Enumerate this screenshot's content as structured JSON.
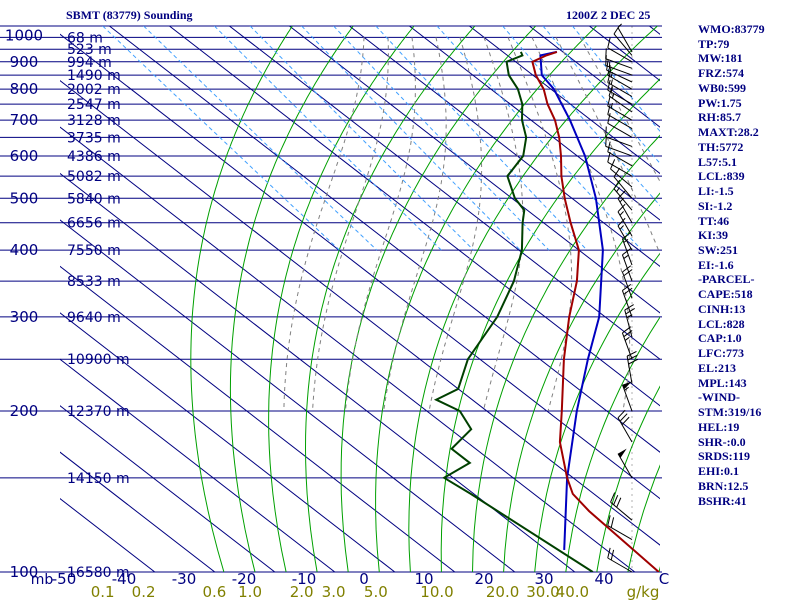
{
  "header": {
    "station": "SBMT (83779) Sounding",
    "datetime": "1200Z  2 DEC 25"
  },
  "indices": [
    "WMO:83779",
    "TP:79",
    "MW:181",
    "FRZ:574",
    "WB0:599",
    "PW:1.75",
    "RH:85.7",
    "MAXT:28.2",
    "TH:5772",
    "L57:5.1",
    "LCL:839",
    "LI:-1.5",
    "SI:-1.2",
    "TT:46",
    "KI:39",
    "SW:251",
    "EI:-1.6",
    "-PARCEL-",
    "CAPE:518",
    "CINH:13",
    "LCL:828",
    "CAP:1.0",
    "LFC:773",
    "EL:213",
    "MPL:143",
    "-WIND-",
    "STM:319/16",
    "HEL:19",
    "SHR-:0.0",
    "SRDS:119",
    "EHI:0.1",
    "BRN:12.5",
    "BSHR:41"
  ],
  "colors": {
    "pressure_lines": "#000080",
    "isotherms": "#000080",
    "dry_adiabats": "#00a000",
    "moist_adiabats": "#808080",
    "mixing_ratio": "#40a0ff",
    "temperature": "#a00000",
    "dewpoint": "#004000",
    "parcel": "#0000c0",
    "wind": "#000000",
    "labels": "#000080",
    "mixing_labels": "#808000"
  },
  "chart_data": {
    "type": "skew-t",
    "title": "SBMT (83779) Sounding",
    "pressure_unit": "mb",
    "temperature_unit": "C",
    "mixing_ratio_unit": "g/kg",
    "pressure_range": [
      1050,
      100
    ],
    "pressure_labels": [
      {
        "p": 100,
        "text": "100"
      },
      {
        "p": 200,
        "text": "200"
      },
      {
        "p": 300,
        "text": "300"
      },
      {
        "p": 400,
        "text": "400"
      },
      {
        "p": 500,
        "text": "500"
      },
      {
        "p": 600,
        "text": "600"
      },
      {
        "p": 700,
        "text": "700"
      },
      {
        "p": 800,
        "text": "800"
      },
      {
        "p": 900,
        "text": "900"
      },
      {
        "p": 1000,
        "text": "1000"
      }
    ],
    "height_labels": [
      {
        "p": 100,
        "text": "16580 m"
      },
      {
        "p": 150,
        "text": "14150 m"
      },
      {
        "p": 200,
        "text": "12370 m"
      },
      {
        "p": 250,
        "text": "10900 m"
      },
      {
        "p": 300,
        "text": "9640 m"
      },
      {
        "p": 350,
        "text": "8533 m"
      },
      {
        "p": 400,
        "text": "7550 m"
      },
      {
        "p": 450,
        "text": "6656 m"
      },
      {
        "p": 500,
        "text": "5840 m"
      },
      {
        "p": 550,
        "text": "5082 m"
      },
      {
        "p": 600,
        "text": "4386 m"
      },
      {
        "p": 650,
        "text": "3735 m"
      },
      {
        "p": 700,
        "text": "3128 m"
      },
      {
        "p": 750,
        "text": "2547 m"
      },
      {
        "p": 800,
        "text": "2002 m"
      },
      {
        "p": 850,
        "text": "1490 m"
      },
      {
        "p": 900,
        "text": "994 m"
      },
      {
        "p": 950,
        "text": "523 m"
      },
      {
        "p": 1000,
        "text": "68 m"
      }
    ],
    "temp_ticks": [
      {
        "t": -50,
        "text": "-50"
      },
      {
        "t": -40,
        "text": "-40"
      },
      {
        "t": -30,
        "text": "-30"
      },
      {
        "t": -20,
        "text": "-20"
      },
      {
        "t": -10,
        "text": "-10"
      },
      {
        "t": 0,
        "text": "0"
      },
      {
        "t": 10,
        "text": "10"
      },
      {
        "t": 20,
        "text": "20"
      },
      {
        "t": 30,
        "text": "30"
      },
      {
        "t": 40,
        "text": "40"
      },
      {
        "t": 50,
        "text": "C"
      }
    ],
    "mixing_ratios": [
      {
        "w": 0.1,
        "text": "0.1"
      },
      {
        "w": 0.2,
        "text": "0.2"
      },
      {
        "w": 0.6,
        "text": "0.6"
      },
      {
        "w": 1.0,
        "text": "1.0"
      },
      {
        "w": 2.0,
        "text": "2.0"
      },
      {
        "w": 3.0,
        "text": "3.0"
      },
      {
        "w": 5.0,
        "text": "5.0"
      },
      {
        "w": 10.0,
        "text": "10.0"
      },
      {
        "w": 20.0,
        "text": "20.0"
      },
      {
        "w": 30.0,
        "text": "30.0"
      },
      {
        "w": 40.0,
        "text": "40.0"
      }
    ],
    "mixing_unit_label": "g/kg",
    "temperature": [
      [
        939,
        29
      ],
      [
        925,
        26.5
      ],
      [
        900,
        22.8
      ],
      [
        850,
        20.5
      ],
      [
        800,
        18.8
      ],
      [
        750,
        16.2
      ],
      [
        700,
        14.0
      ],
      [
        650,
        11.0
      ],
      [
        600,
        7.3
      ],
      [
        550,
        3.0
      ],
      [
        500,
        -1.2
      ],
      [
        450,
        -5.5
      ],
      [
        400,
        -10.0
      ],
      [
        350,
        -17.0
      ],
      [
        300,
        -26.0
      ],
      [
        250,
        -36.0
      ],
      [
        200,
        -47.5
      ],
      [
        175,
        -54.5
      ],
      [
        150,
        -61.0
      ],
      [
        140,
        -63.5
      ],
      [
        130,
        -64.5
      ],
      [
        100,
        -66.0
      ]
    ],
    "dewpoint": [
      [
        939,
        23
      ],
      [
        925,
        22.5
      ],
      [
        900,
        18.5
      ],
      [
        850,
        16.0
      ],
      [
        800,
        14.5
      ],
      [
        750,
        12.0
      ],
      [
        700,
        8.5
      ],
      [
        650,
        5.5
      ],
      [
        600,
        1.0
      ],
      [
        550,
        -6.0
      ],
      [
        500,
        -9.5
      ],
      [
        475,
        -10.5
      ],
      [
        450,
        -13.5
      ],
      [
        400,
        -19.5
      ],
      [
        350,
        -27.5
      ],
      [
        300,
        -38.0
      ],
      [
        250,
        -52.0
      ],
      [
        220,
        -60.0
      ],
      [
        210,
        -66.0
      ],
      [
        200,
        -64.5
      ],
      [
        185,
        -66.5
      ],
      [
        170,
        -74.0
      ],
      [
        160,
        -74.0
      ],
      [
        150,
        -81.5
      ],
      [
        140,
        -80.5
      ],
      [
        100,
        -77.0
      ]
    ],
    "parcel": [
      [
        939,
        29
      ],
      [
        925,
        25.5
      ],
      [
        850,
        21.5
      ],
      [
        800,
        20.5
      ],
      [
        700,
        16.5
      ],
      [
        600,
        11.3
      ],
      [
        500,
        4.0
      ],
      [
        400,
        -6.0
      ],
      [
        300,
        -21.0
      ],
      [
        250,
        -32.0
      ],
      [
        200,
        -45.0
      ],
      [
        150,
        -61.0
      ],
      [
        110,
        -77.0
      ]
    ],
    "dry_adiabats_theta_k": [
      260,
      270,
      280,
      290,
      300,
      310,
      320,
      330,
      340,
      350,
      360,
      370,
      380,
      390,
      400,
      410,
      420,
      430,
      440,
      450,
      460,
      480,
      500,
      520,
      540
    ],
    "moist_adiabats_start_c": [
      0,
      4,
      8,
      12,
      16,
      20,
      24,
      28,
      32,
      36
    ],
    "winds": [
      {
        "p": 939,
        "dir": 330,
        "spd": 5
      },
      {
        "p": 925,
        "dir": 320,
        "spd": 10
      },
      {
        "p": 900,
        "dir": 300,
        "spd": 10
      },
      {
        "p": 875,
        "dir": 290,
        "spd": 10
      },
      {
        "p": 850,
        "dir": 290,
        "spd": 15
      },
      {
        "p": 825,
        "dir": 295,
        "spd": 15
      },
      {
        "p": 800,
        "dir": 300,
        "spd": 15
      },
      {
        "p": 775,
        "dir": 300,
        "spd": 15
      },
      {
        "p": 750,
        "dir": 300,
        "spd": 15
      },
      {
        "p": 725,
        "dir": 305,
        "spd": 15
      },
      {
        "p": 700,
        "dir": 300,
        "spd": 15
      },
      {
        "p": 675,
        "dir": 300,
        "spd": 10
      },
      {
        "p": 650,
        "dir": 300,
        "spd": 10
      },
      {
        "p": 625,
        "dir": 290,
        "spd": 10
      },
      {
        "p": 600,
        "dir": 290,
        "spd": 10
      },
      {
        "p": 575,
        "dir": 300,
        "spd": 10
      },
      {
        "p": 550,
        "dir": 300,
        "spd": 10
      },
      {
        "p": 525,
        "dir": 310,
        "spd": 10
      },
      {
        "p": 500,
        "dir": 320,
        "spd": 10
      },
      {
        "p": 475,
        "dir": 320,
        "spd": 15
      },
      {
        "p": 450,
        "dir": 330,
        "spd": 15
      },
      {
        "p": 425,
        "dir": 330,
        "spd": 15
      },
      {
        "p": 400,
        "dir": 330,
        "spd": 15
      },
      {
        "p": 375,
        "dir": 340,
        "spd": 15
      },
      {
        "p": 350,
        "dir": 340,
        "spd": 15
      },
      {
        "p": 325,
        "dir": 340,
        "spd": 20
      },
      {
        "p": 300,
        "dir": 340,
        "spd": 20
      },
      {
        "p": 275,
        "dir": 345,
        "spd": 25
      },
      {
        "p": 250,
        "dir": 340,
        "spd": 25
      },
      {
        "p": 225,
        "dir": 350,
        "spd": 30
      },
      {
        "p": 200,
        "dir": 340,
        "spd": 55
      },
      {
        "p": 175,
        "dir": 330,
        "spd": 30
      },
      {
        "p": 150,
        "dir": 330,
        "spd": 50
      },
      {
        "p": 125,
        "dir": 310,
        "spd": 30
      },
      {
        "p": 115,
        "dir": 300,
        "spd": 20
      },
      {
        "p": 100,
        "dir": 300,
        "spd": 20
      }
    ]
  }
}
